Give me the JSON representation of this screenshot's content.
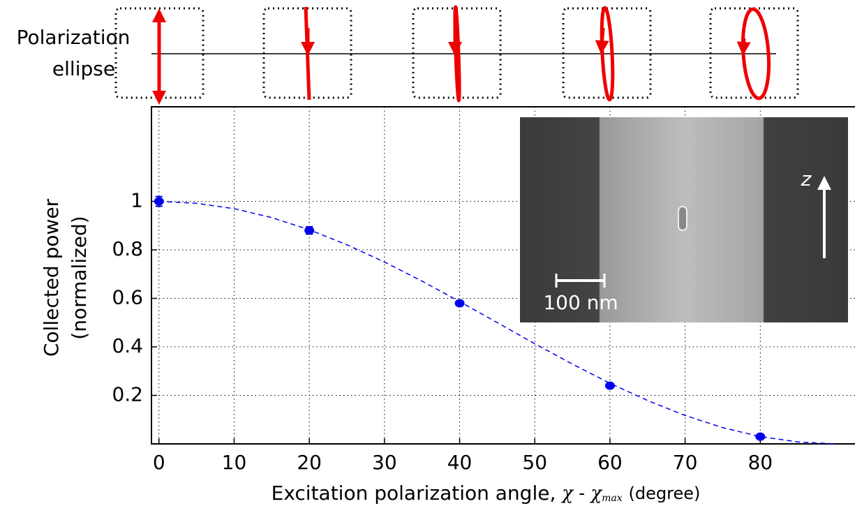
{
  "chart_data": {
    "type": "scatter",
    "annotation": [
      "Polarization",
      "ellipse"
    ],
    "ylabel": [
      "Collected power",
      "(normalized)"
    ],
    "xlabel": "Excitation polarization angle,",
    "xlabel_math": "χ - χ",
    "xlabel_sub": "max",
    "xlabel_unit": "(degree)",
    "inset_labels": {
      "axis": "z",
      "scale_bar": "100 nm"
    },
    "xlim": [
      -1,
      92.6
    ],
    "ylim": [
      0,
      1.39
    ],
    "xticks": [
      0,
      10,
      20,
      30,
      40,
      50,
      60,
      70,
      80
    ],
    "yticks": [
      0.2,
      0.4,
      0.6,
      0.8,
      1
    ],
    "grid": true,
    "series": [
      {
        "color": "#0000ee",
        "x": [
          0,
          20,
          40,
          60,
          80
        ],
        "values": [
          1.0,
          0.88,
          0.58,
          0.24,
          0.03
        ],
        "errors": [
          0.02,
          0.015,
          0.01,
          0.006,
          0.006
        ]
      },
      {
        "color": "#0000ee",
        "x": [
          0,
          5,
          10,
          15,
          20,
          25,
          30,
          35,
          40,
          45,
          50,
          55,
          60,
          65,
          70,
          75,
          80,
          85,
          90
        ],
        "values": [
          1,
          0.992,
          0.97,
          0.933,
          0.883,
          0.821,
          0.75,
          0.671,
          0.587,
          0.5,
          0.413,
          0.329,
          0.25,
          0.179,
          0.117,
          0.067,
          0.03,
          0.008,
          0
        ]
      }
    ]
  }
}
